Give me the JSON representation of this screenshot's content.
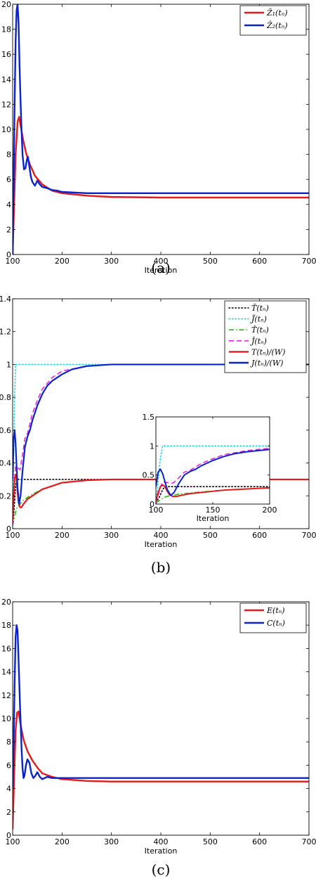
{
  "chart_data": [
    {
      "type": "line",
      "caption": "(a)",
      "xlabel": "Iteration",
      "ylabel": "",
      "xlim": [
        100,
        700
      ],
      "ylim": [
        0,
        20
      ],
      "xticks": [
        "100",
        "200",
        "300",
        "400",
        "500",
        "600",
        "700"
      ],
      "yticks": [
        "0",
        "2",
        "4",
        "6",
        "8",
        "10",
        "12",
        "14",
        "16",
        "18",
        "20"
      ],
      "legend": "top-right",
      "grid": false,
      "series": [
        {
          "name": "Ẑ₁(tₙ)",
          "color": "#e41a1c",
          "style": "solid",
          "x": [
            100,
            103,
            106,
            110,
            113,
            117,
            122,
            128,
            135,
            145,
            160,
            180,
            200,
            250,
            300,
            400,
            500,
            600,
            700
          ],
          "y": [
            0,
            4,
            8,
            10.6,
            11,
            10.1,
            9,
            8,
            7.2,
            6.3,
            5.6,
            5.1,
            4.9,
            4.7,
            4.6,
            4.55,
            4.55,
            4.55,
            4.55
          ]
        },
        {
          "name": "Ẑ₂(tₙ)",
          "color": "#0c23c9",
          "style": "solid",
          "x": [
            100,
            102,
            104,
            106,
            108,
            110,
            112,
            114,
            117,
            120,
            123,
            126,
            129,
            131,
            134,
            137,
            140,
            145,
            150,
            155,
            160,
            170,
            180,
            190,
            200,
            250,
            300,
            400,
            500,
            600,
            700
          ],
          "y": [
            0,
            6,
            12,
            17,
            19.5,
            20,
            18.5,
            15,
            11,
            8,
            6.8,
            6.9,
            7.6,
            7.8,
            7,
            6.2,
            5.8,
            5.5,
            5.9,
            5.6,
            5.4,
            5.3,
            5.15,
            5.1,
            5,
            4.9,
            4.9,
            4.9,
            4.9,
            4.9,
            4.9
          ]
        }
      ]
    },
    {
      "type": "line",
      "caption": "(b)",
      "xlabel": "Iteration",
      "ylabel": "",
      "xlim": [
        100,
        700
      ],
      "ylim": [
        0,
        1.4
      ],
      "xticks": [
        "100",
        "200",
        "300",
        "400",
        "500",
        "600",
        "700"
      ],
      "yticks": [
        "0",
        "0.2",
        "0.4",
        "0.6",
        "0.8",
        "1",
        "1.2",
        "1.4"
      ],
      "legend": "top-right",
      "grid": false,
      "series": [
        {
          "name": "T̃(tₙ)",
          "color": "#000000",
          "style": "dotted",
          "x": [
            100,
            103,
            106,
            108,
            110,
            700
          ],
          "y": [
            0.02,
            0.12,
            0.25,
            0.3,
            0.3,
            0.3
          ]
        },
        {
          "name": "J̃(tₙ)",
          "color": "#1fd3e8",
          "style": "dotted",
          "x": [
            100,
            102,
            104,
            106,
            108,
            700
          ],
          "y": [
            0,
            0.4,
            0.8,
            1,
            1,
            1
          ]
        },
        {
          "name": "T̂(tₙ)",
          "color": "#21c40c",
          "style": "dashdot",
          "x": [
            100,
            103,
            106,
            109,
            112,
            115,
            120,
            130,
            140,
            160,
            180,
            200,
            250,
            300,
            400,
            500,
            600,
            700
          ],
          "y": [
            0.02,
            0.06,
            0.1,
            0.13,
            0.14,
            0.15,
            0.17,
            0.19,
            0.21,
            0.24,
            0.26,
            0.28,
            0.295,
            0.3,
            0.3,
            0.3,
            0.3,
            0.3
          ]
        },
        {
          "name": "Ĵ(tₙ)",
          "color": "#e623e6",
          "style": "dashed",
          "x": [
            100,
            102,
            104,
            106,
            110,
            115,
            120,
            125,
            130,
            140,
            150,
            160,
            180,
            200,
            250,
            300,
            400,
            500,
            600,
            700
          ],
          "y": [
            0.02,
            0.15,
            0.3,
            0.38,
            0.37,
            0.36,
            0.45,
            0.55,
            0.58,
            0.7,
            0.78,
            0.85,
            0.92,
            0.96,
            0.99,
            1,
            1,
            1,
            1,
            1
          ]
        },
        {
          "name": "T(tₙ)/(W)",
          "color": "#e41a1c",
          "style": "solid",
          "x": [
            100,
            102,
            104,
            106,
            108,
            110,
            112,
            115,
            118,
            122,
            130,
            140,
            150,
            160,
            180,
            200,
            250,
            300,
            400,
            500,
            600,
            700
          ],
          "y": [
            0.05,
            0.2,
            0.3,
            0.33,
            0.3,
            0.22,
            0.16,
            0.13,
            0.13,
            0.15,
            0.18,
            0.2,
            0.22,
            0.24,
            0.26,
            0.28,
            0.295,
            0.3,
            0.3,
            0.3,
            0.3,
            0.3
          ]
        },
        {
          "name": "J(tₙ)/(W)",
          "color": "#0c23c9",
          "style": "solid",
          "x": [
            100,
            102,
            104,
            106,
            108,
            110,
            113,
            116,
            120,
            125,
            130,
            135,
            140,
            150,
            160,
            170,
            180,
            200,
            220,
            250,
            300,
            400,
            500,
            600,
            700
          ],
          "y": [
            0.3,
            0.55,
            0.6,
            0.52,
            0.38,
            0.25,
            0.15,
            0.2,
            0.35,
            0.5,
            0.56,
            0.6,
            0.66,
            0.75,
            0.82,
            0.87,
            0.9,
            0.94,
            0.97,
            0.99,
            1,
            1,
            1,
            1,
            1
          ]
        }
      ],
      "inset": {
        "type": "line",
        "xlabel": "Iteration",
        "xlim": [
          100,
          200
        ],
        "ylim": [
          0,
          1.5
        ],
        "xticks": [
          "100",
          "150",
          "200"
        ],
        "yticks": [
          "0",
          "0.5",
          "1",
          "1.5"
        ],
        "series": [
          {
            "color": "#000000",
            "style": "dotted",
            "x": [
              100,
              103,
              106,
              108,
              110,
              200
            ],
            "y": [
              0.02,
              0.12,
              0.25,
              0.3,
              0.3,
              0.3
            ]
          },
          {
            "color": "#1fd3e8",
            "style": "dotted",
            "x": [
              100,
              102,
              104,
              106,
              108,
              200
            ],
            "y": [
              0,
              0.4,
              0.8,
              1,
              1,
              1
            ]
          },
          {
            "color": "#21c40c",
            "style": "dashdot",
            "x": [
              100,
              103,
              106,
              109,
              112,
              115,
              120,
              130,
              140,
              160,
              180,
              200
            ],
            "y": [
              0.02,
              0.06,
              0.1,
              0.13,
              0.14,
              0.15,
              0.17,
              0.19,
              0.21,
              0.24,
              0.26,
              0.28
            ]
          },
          {
            "color": "#e623e6",
            "style": "dashed",
            "x": [
              100,
              102,
              104,
              106,
              110,
              115,
              120,
              125,
              130,
              140,
              150,
              160,
              180,
              200
            ],
            "y": [
              0.02,
              0.15,
              0.3,
              0.38,
              0.37,
              0.36,
              0.45,
              0.55,
              0.58,
              0.7,
              0.78,
              0.85,
              0.92,
              0.96
            ]
          },
          {
            "color": "#e41a1c",
            "style": "solid",
            "x": [
              100,
              102,
              104,
              106,
              108,
              110,
              112,
              115,
              118,
              122,
              130,
              140,
              150,
              160,
              180,
              200
            ],
            "y": [
              0.05,
              0.2,
              0.3,
              0.33,
              0.3,
              0.22,
              0.16,
              0.13,
              0.13,
              0.15,
              0.18,
              0.2,
              0.22,
              0.24,
              0.26,
              0.28
            ]
          },
          {
            "color": "#0c23c9",
            "style": "solid",
            "x": [
              100,
              102,
              104,
              106,
              108,
              110,
              113,
              116,
              120,
              125,
              130,
              135,
              140,
              150,
              160,
              170,
              180,
              200
            ],
            "y": [
              0.3,
              0.55,
              0.6,
              0.52,
              0.38,
              0.25,
              0.15,
              0.2,
              0.35,
              0.5,
              0.56,
              0.6,
              0.66,
              0.75,
              0.82,
              0.87,
              0.9,
              0.94
            ]
          }
        ]
      }
    },
    {
      "type": "line",
      "caption": "(c)",
      "xlabel": "Iteration",
      "ylabel": "",
      "xlim": [
        100,
        700
      ],
      "ylim": [
        0,
        20
      ],
      "xticks": [
        "100",
        "200",
        "300",
        "400",
        "500",
        "600",
        "700"
      ],
      "yticks": [
        "0",
        "2",
        "4",
        "6",
        "8",
        "10",
        "12",
        "14",
        "16",
        "18",
        "20"
      ],
      "legend": "top-right",
      "grid": false,
      "series": [
        {
          "name": "E(tₙ)",
          "color": "#e41a1c",
          "style": "solid",
          "x": [
            100,
            103,
            106,
            109,
            112,
            116,
            122,
            130,
            140,
            150,
            160,
            180,
            200,
            250,
            300,
            400,
            500,
            600,
            700
          ],
          "y": [
            0.5,
            5,
            9,
            10.5,
            10.6,
            9.5,
            8.2,
            7.2,
            6.4,
            5.8,
            5.3,
            5,
            4.8,
            4.65,
            4.6,
            4.6,
            4.6,
            4.6,
            4.6
          ]
        },
        {
          "name": "C(tₙ)",
          "color": "#0c23c9",
          "style": "solid",
          "x": [
            100,
            102,
            104,
            106,
            108,
            110,
            112,
            115,
            118,
            120,
            122,
            124,
            127,
            130,
            134,
            138,
            142,
            146,
            150,
            155,
            160,
            170,
            180,
            190,
            200,
            300,
            400,
            500,
            600,
            700
          ],
          "y": [
            4,
            8,
            13,
            17,
            18,
            17.5,
            15,
            11,
            7.5,
            5.8,
            4.9,
            5.1,
            6,
            6.5,
            6.2,
            5.3,
            4.9,
            5.1,
            5.4,
            5,
            4.8,
            5,
            4.9,
            4.9,
            4.9,
            4.9,
            4.9,
            4.9,
            4.9,
            4.9
          ]
        }
      ]
    }
  ]
}
